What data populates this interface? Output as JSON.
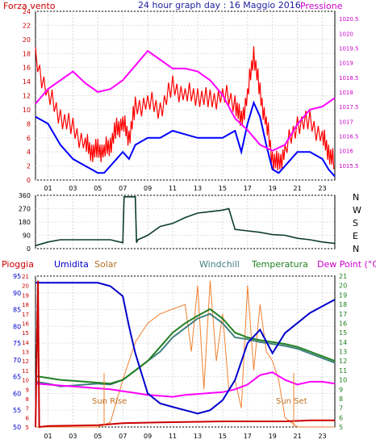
{
  "header": {
    "left_label": "Forza vento",
    "title": "24 hour graph day : 16 Maggio 2016",
    "right_label": "Pressione"
  },
  "bottom_header": {
    "pioggia": "Pioggia",
    "umidita": "Umidita",
    "solar": "Solar",
    "windchill": "Windchill",
    "temperatura": "Temperatura",
    "dewpoint": "Dew Point (°C)"
  },
  "annotations": {
    "sunrise": "Sun Rise",
    "sunset": "Sun Set"
  },
  "colors": {
    "wind": "#ff0000",
    "wind_avg": "#0000ff",
    "pressure": "#ff00ff",
    "direction": "#0b3b2e",
    "humidity": "#0000cc",
    "solar": "#f08030",
    "windchill": "#408080",
    "temperature": "#208020",
    "dewpoint": "#ff00ff",
    "rain": "#cc0000"
  },
  "chart_data": [
    {
      "type": "line",
      "title": "24 hour graph day : 16 Maggio 2016",
      "x_ticks": [
        "01",
        "03",
        "05",
        "07",
        "09",
        "11",
        "13",
        "15",
        "17",
        "19",
        "21",
        "23"
      ],
      "left_axis": {
        "label": "Forza vento",
        "ylim": [
          0,
          24
        ],
        "ticks": [
          "0",
          "2",
          "4",
          "6",
          "8",
          "10",
          "12",
          "14",
          "16",
          "18",
          "20",
          "22",
          "24"
        ]
      },
      "right_axis": {
        "label": "Pressione",
        "ylim": [
          1015,
          1020.75
        ],
        "ticks": [
          "1015.5",
          "1016",
          "1016.5",
          "1017",
          "1017.5",
          "1018",
          "1018.5",
          "1019",
          "1019.5",
          "1020",
          "1020.5"
        ]
      },
      "series": [
        {
          "name": "Forza vento",
          "axis": "left",
          "x": [
            0,
            1,
            2,
            3,
            4,
            4.5,
            5,
            5.5,
            6,
            6.5,
            7,
            7.5,
            8,
            9,
            10,
            11,
            12,
            13,
            14,
            15,
            16,
            16.5,
            17,
            17.5,
            18,
            18.5,
            19,
            19.5,
            20,
            21,
            22,
            23,
            23.5,
            24
          ],
          "y": [
            17,
            12,
            9,
            7,
            5,
            4,
            4,
            4,
            5,
            7,
            8,
            6,
            10,
            11,
            10,
            13,
            12,
            12,
            11,
            12,
            11,
            8,
            12,
            18,
            12,
            8,
            3,
            2,
            4,
            8,
            8,
            6,
            4,
            2
          ]
        },
        {
          "y2_note": "avg",
          "axis": "left",
          "x": [
            0,
            1,
            2,
            3,
            4,
            4.5,
            5,
            5.5,
            6,
            6.5,
            7,
            7.5,
            8,
            9,
            10,
            11,
            12,
            13,
            14,
            15,
            16,
            16.5,
            17,
            17.5,
            18,
            18.5,
            19,
            19.5,
            20,
            21,
            22,
            23,
            23.5,
            24
          ],
          "y": [
            9,
            8,
            5,
            3,
            2,
            1.5,
            1,
            1,
            2,
            3,
            4,
            3,
            5,
            6,
            6,
            7,
            6.5,
            6,
            6,
            6,
            7,
            4,
            8,
            11,
            9,
            5,
            1.5,
            1,
            2,
            4,
            4,
            3,
            1.5,
            0.5
          ]
        },
        {
          "name": "Pressione",
          "axis": "right",
          "x": [
            0,
            1,
            2,
            3,
            4,
            5,
            6,
            7,
            8,
            9,
            10,
            11,
            12,
            13,
            14,
            15,
            16,
            17,
            18,
            19,
            20,
            21,
            22,
            23,
            24
          ],
          "y": [
            1017.6,
            1018.1,
            1018.4,
            1018.7,
            1018.3,
            1018.0,
            1018.1,
            1018.4,
            1018.9,
            1019.4,
            1019.1,
            1018.8,
            1018.8,
            1018.7,
            1018.4,
            1017.9,
            1017.1,
            1016.7,
            1016.2,
            1016.0,
            1016.2,
            1016.9,
            1017.4,
            1017.5,
            1017.8
          ]
        }
      ]
    },
    {
      "type": "line",
      "title": "",
      "x_ticks": [],
      "y_axis": {
        "ticks": [
          "0",
          "90",
          "180",
          "270",
          "360"
        ],
        "ylim": [
          0,
          360
        ]
      },
      "right_labels": [
        "N",
        "W",
        "S",
        "E",
        "N"
      ],
      "series": [
        {
          "name": "",
          "x": [
            0,
            1,
            2,
            3,
            4,
            5,
            6,
            7,
            7.1,
            7.2,
            8,
            8.1,
            8.2,
            9,
            10,
            11,
            12,
            13,
            14,
            15,
            15.5,
            16,
            17,
            18,
            19,
            20,
            21,
            22,
            23,
            24
          ],
          "y": [
            20,
            45,
            60,
            60,
            60,
            60,
            60,
            40,
            350,
            350,
            350,
            40,
            60,
            90,
            150,
            170,
            210,
            240,
            250,
            260,
            270,
            130,
            120,
            110,
            95,
            90,
            70,
            60,
            45,
            35
          ]
        }
      ]
    },
    {
      "type": "line",
      "title": "",
      "x_ticks": [
        "01",
        "03",
        "05",
        "07",
        "09",
        "11",
        "13",
        "15",
        "17",
        "19",
        "21",
        "23"
      ],
      "extra_tick_labels": [
        "Sun Rise",
        "Sun Set"
      ],
      "left_axis": {
        "label": "Umidita",
        "ylim": [
          50,
          95
        ],
        "ticks": [
          "50",
          "55",
          "60",
          "65",
          "70",
          "75",
          "80",
          "85",
          "90",
          "95"
        ]
      },
      "right_axis": {
        "label": "Temperatura",
        "ylim": [
          5,
          21
        ],
        "ticks": [
          "5",
          "6",
          "7",
          "8",
          "9",
          "10",
          "11",
          "12",
          "13",
          "14",
          "15",
          "16",
          "17",
          "18",
          "19",
          "20",
          "21"
        ]
      },
      "series": [
        {
          "name": "Umidita",
          "axis": "left",
          "x": [
            0,
            1,
            2,
            3,
            4,
            5,
            6,
            7,
            7.5,
            8,
            9,
            10,
            11,
            12,
            13,
            14,
            15,
            16,
            17,
            18,
            19,
            20,
            21,
            22,
            23,
            24
          ],
          "y": [
            93,
            93,
            93,
            93,
            93,
            93,
            92,
            89,
            80,
            72,
            60,
            57,
            56,
            55,
            54,
            55,
            58,
            64,
            75,
            79,
            72,
            78,
            81,
            84,
            86,
            88
          ]
        },
        {
          "name": "Temperatura",
          "axis": "right",
          "x": [
            0,
            1,
            2,
            3,
            4,
            5,
            6,
            7,
            8,
            9,
            10,
            11,
            12,
            13,
            14,
            15,
            16,
            17,
            18,
            19,
            20,
            21,
            22,
            23,
            24
          ],
          "y": [
            10.4,
            10.2,
            10.0,
            9.9,
            9.8,
            9.7,
            9.6,
            10.0,
            11.0,
            12.0,
            13.5,
            15.0,
            16.0,
            16.8,
            17.5,
            16.5,
            15.0,
            14.5,
            14.2,
            14.0,
            13.8,
            13.5,
            13.0,
            12.5,
            12.0
          ]
        },
        {
          "name": "Windchill",
          "axis": "right",
          "x": [
            0,
            1,
            2,
            3,
            4,
            5,
            6,
            7,
            8,
            9,
            10,
            11,
            12,
            13,
            14,
            15,
            16,
            17,
            18,
            19,
            20,
            21,
            22,
            23,
            24
          ],
          "y": [
            9.8,
            9.6,
            9.3,
            9.4,
            9.5,
            9.6,
            9.5,
            10.0,
            11.0,
            12.0,
            13.0,
            14.5,
            15.5,
            16.5,
            17.0,
            16.0,
            14.5,
            14.3,
            14.0,
            13.8,
            13.6,
            13.3,
            12.8,
            12.3,
            11.8
          ]
        },
        {
          "name": "Dew Point (°C)",
          "axis": "right",
          "x": [
            0,
            1,
            2,
            3,
            4,
            5,
            6,
            7,
            8,
            9,
            10,
            11,
            12,
            13,
            14,
            15,
            16,
            17,
            18,
            19,
            20,
            21,
            22,
            23,
            24
          ],
          "y": [
            9.6,
            9.5,
            9.4,
            9.3,
            9.2,
            9.1,
            9.0,
            8.8,
            8.6,
            8.4,
            8.3,
            8.2,
            8.4,
            8.5,
            8.6,
            8.7,
            9.0,
            9.5,
            10.5,
            10.8,
            10.0,
            9.5,
            9.8,
            9.8,
            9.6
          ]
        },
        {
          "name": "Solar",
          "axis": "right",
          "x": [
            0,
            5,
            6,
            7,
            8,
            9,
            10,
            11,
            12,
            12.5,
            13,
            13.5,
            14,
            14.5,
            15,
            15.5,
            16,
            16.5,
            17,
            17.5,
            18,
            18.5,
            19,
            19.5,
            20,
            21,
            24
          ],
          "y": [
            5,
            5,
            5.5,
            10,
            14,
            16,
            17,
            17.5,
            18,
            13,
            20,
            9,
            20.5,
            12,
            17,
            9,
            10,
            7,
            20,
            11,
            18,
            13,
            12,
            10,
            6,
            5,
            5
          ]
        },
        {
          "name": "Pioggia",
          "axis": "right",
          "x": [
            0,
            0.2,
            0.3,
            1,
            5,
            6,
            7,
            10,
            15,
            20,
            22,
            23,
            24
          ],
          "y": [
            5,
            20.5,
            5,
            5.1,
            5.2,
            5.3,
            5.4,
            5.5,
            5.6,
            5.6,
            5.7,
            5.7,
            5.7
          ]
        }
      ]
    }
  ]
}
